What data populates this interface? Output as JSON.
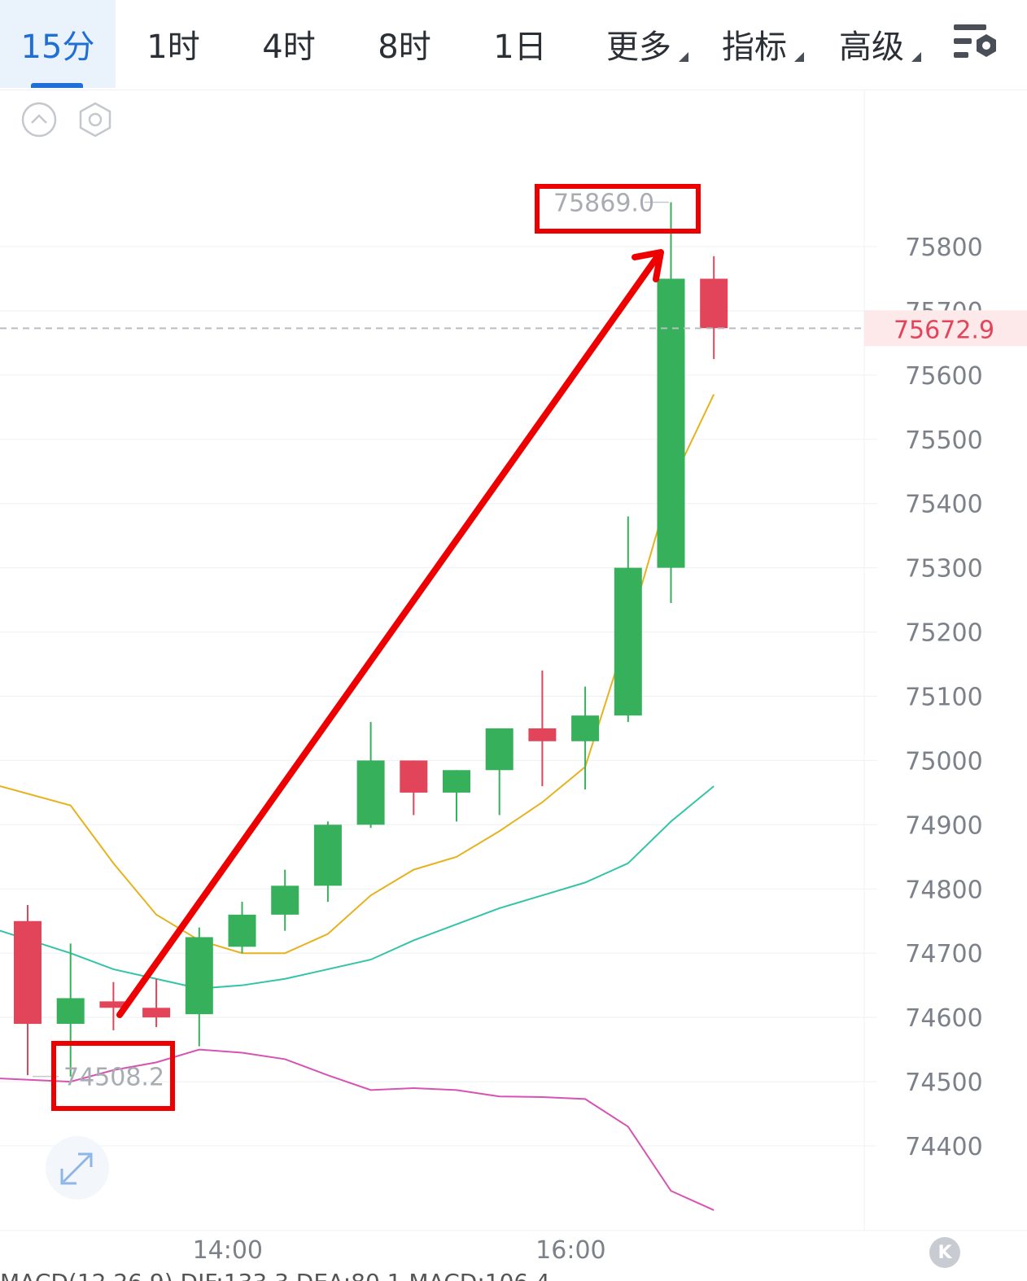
{
  "tabs": [
    {
      "label": "15分",
      "active": true,
      "dropdown": false
    },
    {
      "label": "1时",
      "active": false,
      "dropdown": false
    },
    {
      "label": "4时",
      "active": false,
      "dropdown": false
    },
    {
      "label": "8时",
      "active": false,
      "dropdown": false
    },
    {
      "label": "1日",
      "active": false,
      "dropdown": false
    },
    {
      "label": "更多",
      "active": false,
      "dropdown": true
    },
    {
      "label": "指标",
      "active": false,
      "dropdown": true
    },
    {
      "label": "高级",
      "active": false,
      "dropdown": true
    }
  ],
  "toolbar": {
    "settings_icon": "chart-settings-icon",
    "collapse_icon": "collapse-up-icon",
    "indicator_settings_icon": "hexagon-settings-icon",
    "expand_icon": "expand-arrows-icon",
    "badge_label": "K"
  },
  "indicator_line_text": "MACD(12,26,9) DIF:133.3 DEA:80.1 MACD:106.4",
  "colors": {
    "up": "#36b05a",
    "down": "#e2455a",
    "ma_yellow": "#e6b21e",
    "boll_mid": "#33c4a8",
    "boll_low": "#d653b3",
    "annotation_red": "#ee0000",
    "active_tab": "#1f6fd6",
    "current_price_bg": "#fde8ea",
    "current_price_text": "#e2455a"
  },
  "chart_data": {
    "type": "candlestick",
    "interval": "15分",
    "y_ticks": [
      75800,
      75700,
      75600,
      75500,
      75400,
      75300,
      75200,
      75100,
      75000,
      74900,
      74800,
      74700,
      74600,
      74500,
      74400
    ],
    "ylim": [
      74300,
      75990
    ],
    "x_ticks": [
      {
        "index": 4,
        "label": "14:00"
      },
      {
        "index": 12,
        "label": "16:00"
      }
    ],
    "current_price": "75672.9",
    "high_label": "75869.0",
    "low_label": "74508.2",
    "candles": [
      {
        "open": 74750,
        "high": 74775,
        "low": 74510,
        "close": 74590
      },
      {
        "open": 74590,
        "high": 74715,
        "low": 74508,
        "close": 74630
      },
      {
        "open": 74625,
        "high": 74655,
        "low": 74580,
        "close": 74615
      },
      {
        "open": 74615,
        "high": 74660,
        "low": 74585,
        "close": 74600
      },
      {
        "open": 74605,
        "high": 74740,
        "low": 74555,
        "close": 74725
      },
      {
        "open": 74710,
        "high": 74780,
        "low": 74700,
        "close": 74760
      },
      {
        "open": 74760,
        "high": 74830,
        "low": 74735,
        "close": 74805
      },
      {
        "open": 74805,
        "high": 74905,
        "low": 74780,
        "close": 74900
      },
      {
        "open": 74900,
        "high": 75060,
        "low": 74895,
        "close": 75000
      },
      {
        "open": 75000,
        "high": 75000,
        "low": 74915,
        "close": 74950
      },
      {
        "open": 74950,
        "high": 74985,
        "low": 74905,
        "close": 74985
      },
      {
        "open": 74985,
        "high": 75050,
        "low": 74915,
        "close": 75050
      },
      {
        "open": 75050,
        "high": 75140,
        "low": 74960,
        "close": 75030
      },
      {
        "open": 75030,
        "high": 75115,
        "low": 74955,
        "close": 75070
      },
      {
        "open": 75070,
        "high": 75380,
        "low": 75060,
        "close": 75300
      },
      {
        "open": 75300,
        "high": 75869,
        "low": 75245,
        "close": 75750
      },
      {
        "open": 75750,
        "high": 75785,
        "low": 75625,
        "close": 75673
      }
    ],
    "lines": [
      {
        "color": "ma_yellow",
        "values": [
          74960,
          74945,
          null,
          null,
          null,
          null,
          null,
          null,
          null,
          null,
          null,
          null,
          null,
          null,
          null,
          null,
          null
        ]
      },
      {
        "color": "boll_mid",
        "values": [
          74735,
          74705,
          null,
          null,
          null,
          null,
          null,
          null,
          null,
          null,
          null,
          null,
          null,
          null,
          null,
          null,
          null
        ]
      },
      {
        "color": "boll_low",
        "values": [
          74505,
          74500,
          74518,
          74530,
          74550,
          74545,
          74535,
          74510,
          74487,
          74490,
          74487,
          74477,
          74476,
          74473,
          74430,
          74330,
          74300
        ]
      }
    ]
  }
}
